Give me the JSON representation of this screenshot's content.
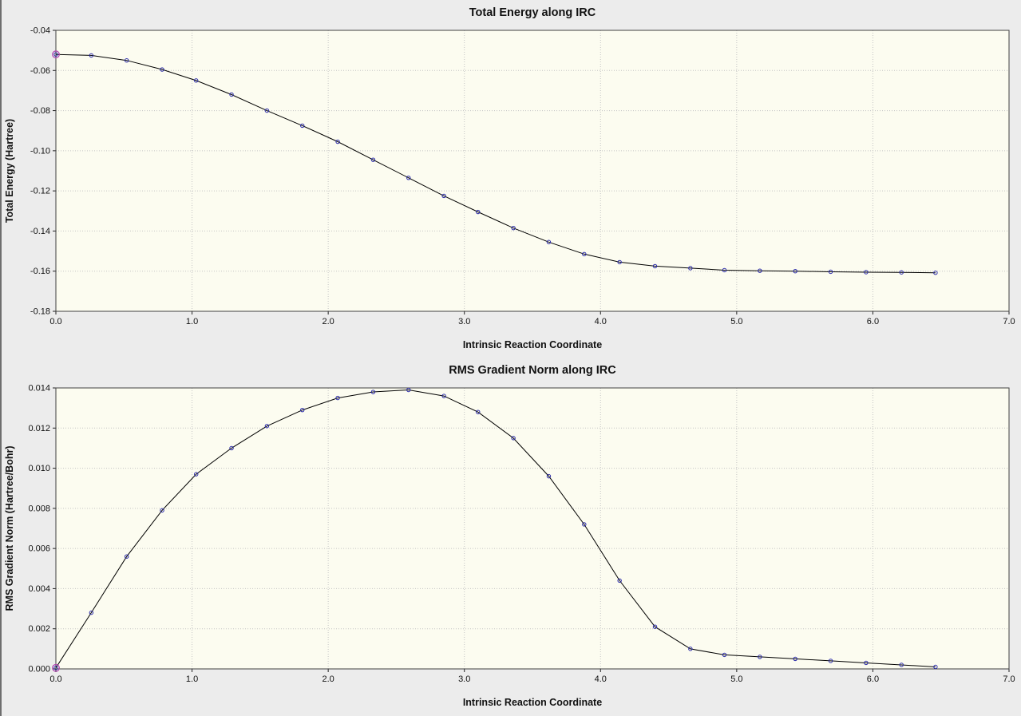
{
  "colors": {
    "window_bg": "#ececec",
    "plot_bg": "#fcfcf0",
    "line": "#000000",
    "marker": "#2a2aa8",
    "start_marker": "#b040b0",
    "grid": "#c4c4c4"
  },
  "chart_data": [
    {
      "type": "line",
      "title": "Total Energy along IRC",
      "xlabel": "Intrinsic Reaction Coordinate",
      "ylabel": "Total Energy (Hartree)",
      "xlim": [
        0.0,
        7.0
      ],
      "ylim": [
        -0.18,
        -0.04
      ],
      "xticks": [
        0.0,
        1.0,
        2.0,
        3.0,
        4.0,
        5.0,
        6.0,
        7.0
      ],
      "yticks": [
        -0.18,
        -0.16,
        -0.14,
        -0.12,
        -0.1,
        -0.08,
        -0.06,
        -0.04
      ],
      "xtick_decimals": 1,
      "ytick_decimals": 2,
      "grid": true,
      "legend": null,
      "marker": "open-circle",
      "x": [
        0.0,
        0.26,
        0.52,
        0.78,
        1.03,
        1.29,
        1.55,
        1.81,
        2.07,
        2.33,
        2.59,
        2.85,
        3.1,
        3.36,
        3.62,
        3.88,
        4.14,
        4.4,
        4.66,
        4.91,
        5.17,
        5.43,
        5.69,
        5.95,
        6.21,
        6.46
      ],
      "y": [
        -0.052,
        -0.0525,
        -0.055,
        -0.0595,
        -0.065,
        -0.072,
        -0.08,
        -0.0875,
        -0.0955,
        -0.1045,
        -0.1135,
        -0.1225,
        -0.1305,
        -0.1385,
        -0.1455,
        -0.1515,
        -0.1555,
        -0.1575,
        -0.1585,
        -0.1595,
        -0.1598,
        -0.16,
        -0.1603,
        -0.1605,
        -0.1606,
        -0.1608
      ]
    },
    {
      "type": "line",
      "title": "RMS Gradient Norm along IRC",
      "xlabel": "Intrinsic Reaction Coordinate",
      "ylabel": "RMS Gradient Norm (Hartree/Bohr)",
      "xlim": [
        0.0,
        7.0
      ],
      "ylim": [
        0.0,
        0.014
      ],
      "xticks": [
        0.0,
        1.0,
        2.0,
        3.0,
        4.0,
        5.0,
        6.0,
        7.0
      ],
      "yticks": [
        0.0,
        0.002,
        0.004,
        0.006,
        0.008,
        0.01,
        0.012,
        0.014
      ],
      "xtick_decimals": 1,
      "ytick_decimals": 3,
      "grid": true,
      "legend": null,
      "marker": "open-circle",
      "x": [
        0.0,
        0.26,
        0.52,
        0.78,
        1.03,
        1.29,
        1.55,
        1.81,
        2.07,
        2.33,
        2.59,
        2.85,
        3.1,
        3.36,
        3.62,
        3.88,
        4.14,
        4.4,
        4.66,
        4.91,
        5.17,
        5.43,
        5.69,
        5.95,
        6.21,
        6.46
      ],
      "y": [
        5e-05,
        0.0028,
        0.0056,
        0.0079,
        0.0097,
        0.011,
        0.0121,
        0.0129,
        0.0135,
        0.0138,
        0.0139,
        0.0136,
        0.0128,
        0.0115,
        0.0096,
        0.0072,
        0.0044,
        0.0021,
        0.001,
        0.0007,
        0.0006,
        0.0005,
        0.0004,
        0.0003,
        0.0002,
        0.0001
      ]
    }
  ]
}
